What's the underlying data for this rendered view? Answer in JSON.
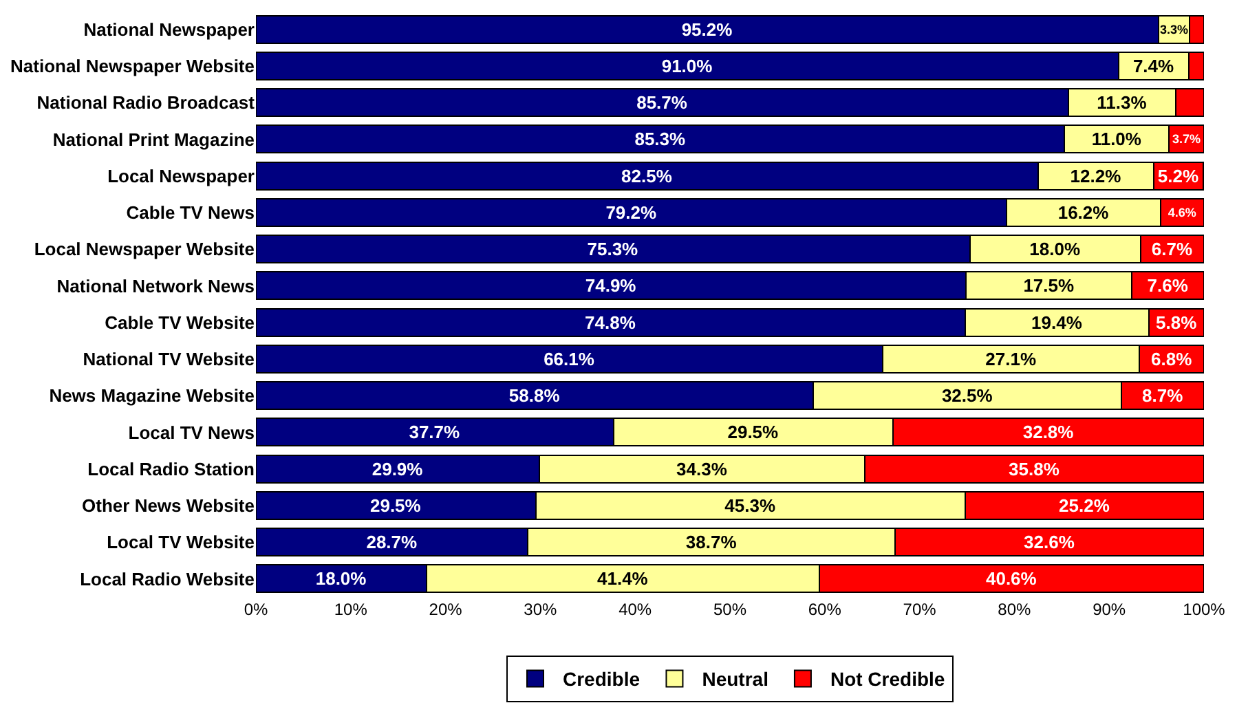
{
  "chart_data": {
    "type": "bar",
    "orientation": "horizontal",
    "stacked": true,
    "legend": "bottom",
    "grid": false,
    "categories": [
      "National Newspaper",
      "National Newspaper Website",
      "National Radio Broadcast",
      "National Print Magazine",
      "Local Newspaper",
      "Cable TV News",
      "Local Newspaper Website",
      "National Network News",
      "Cable TV Website",
      "National TV Website",
      "News Magazine Website",
      "Local TV News",
      "Local Radio Station",
      "Other News Website",
      "Local TV Website",
      "Local Radio Website"
    ],
    "xlim": [
      0,
      100
    ],
    "xticks": [
      {
        "value": 0,
        "label": "0%"
      },
      {
        "value": 10,
        "label": "10%"
      },
      {
        "value": 20,
        "label": "20%"
      },
      {
        "value": 30,
        "label": "30%"
      },
      {
        "value": 40,
        "label": "40%"
      },
      {
        "value": 50,
        "label": "50%"
      },
      {
        "value": 60,
        "label": "60%"
      },
      {
        "value": 70,
        "label": "70%"
      },
      {
        "value": 80,
        "label": "80%"
      },
      {
        "value": 90,
        "label": "90%"
      },
      {
        "value": 100,
        "label": "100%"
      }
    ],
    "series": [
      {
        "name": "Credible",
        "color": "#000080",
        "values": [
          95.2,
          91.0,
          85.7,
          85.3,
          82.5,
          79.2,
          75.3,
          74.9,
          74.8,
          66.1,
          58.8,
          37.7,
          29.9,
          29.5,
          28.7,
          18.0
        ],
        "value_labels": [
          "95.2%",
          "91.0%",
          "85.7%",
          "85.3%",
          "82.5%",
          "79.2%",
          "75.3%",
          "74.9%",
          "74.8%",
          "66.1%",
          "58.8%",
          "37.7%",
          "29.9%",
          "29.5%",
          "28.7%",
          "18.0%"
        ]
      },
      {
        "name": "Neutral",
        "color": "#ffff99",
        "values": [
          3.3,
          7.4,
          11.3,
          11.0,
          12.2,
          16.2,
          18.0,
          17.5,
          19.4,
          27.1,
          32.5,
          29.5,
          34.3,
          45.3,
          38.7,
          41.4
        ],
        "value_labels": [
          "3.3%",
          "7.4%",
          "11.3%",
          "11.0%",
          "12.2%",
          "16.2%",
          "18.0%",
          "17.5%",
          "19.4%",
          "27.1%",
          "32.5%",
          "29.5%",
          "34.3%",
          "45.3%",
          "38.7%",
          "41.4%"
        ]
      },
      {
        "name": "Not Credible",
        "color": "#ff0000",
        "values": [
          1.5,
          1.6,
          3.0,
          3.7,
          5.2,
          4.6,
          6.7,
          7.6,
          5.8,
          6.8,
          8.7,
          32.8,
          35.8,
          25.2,
          32.6,
          40.6
        ],
        "value_labels": [
          null,
          null,
          null,
          "3.7%",
          "5.2%",
          "4.6%",
          "6.7%",
          "7.6%",
          "5.8%",
          "6.8%",
          "8.7%",
          "32.8%",
          "35.8%",
          "25.2%",
          "32.6%",
          "40.6%"
        ]
      }
    ]
  }
}
